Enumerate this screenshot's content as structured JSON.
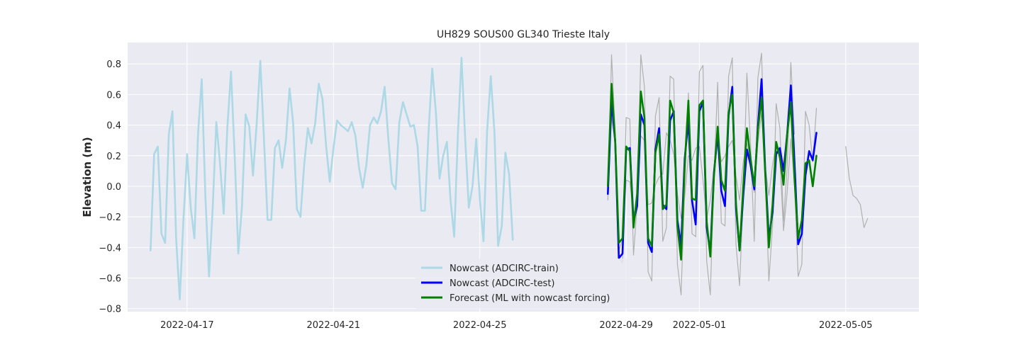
{
  "chart_data": {
    "type": "line",
    "title": "UH829 SOUS00 GL340 Trieste Italy",
    "xlabel": "",
    "ylabel": "Elevation (m)",
    "x_axis": "date",
    "xlim": [
      "2022-04-15T09:00",
      "2022-05-07T00:00"
    ],
    "ylim": [
      -0.82,
      0.94
    ],
    "x_ticks": [
      "2022-04-17",
      "2022-04-21",
      "2022-04-25",
      "2022-04-29",
      "2022-05-01",
      "2022-05-05"
    ],
    "y_ticks": [
      -0.8,
      -0.6,
      -0.4,
      -0.2,
      0.0,
      0.2,
      0.4,
      0.6,
      0.8
    ],
    "y_tick_labels": [
      "−0.8",
      "−0.6",
      "−0.4",
      "−0.2",
      "0.0",
      "0.2",
      "0.4",
      "0.6",
      "0.8"
    ],
    "grid": true,
    "background": "#EAEAF2",
    "legend_position": "lower center",
    "series": [
      {
        "name": "Nowcast (ADCIRC-train)",
        "color": "#ADD8E6",
        "x_start": "2022-04-16T00:00",
        "x_step_hours": 2.4,
        "values": [
          -0.42,
          0.21,
          0.26,
          -0.31,
          -0.37,
          0.34,
          0.49,
          -0.34,
          -0.74,
          -0.22,
          0.21,
          -0.14,
          -0.34,
          0.34,
          0.7,
          -0.07,
          -0.59,
          -0.14,
          0.42,
          0.15,
          -0.18,
          0.38,
          0.75,
          0.2,
          -0.44,
          -0.13,
          0.47,
          0.39,
          0.07,
          0.4,
          0.82,
          0.32,
          -0.22,
          -0.22,
          0.25,
          0.3,
          0.12,
          0.3,
          0.64,
          0.41,
          -0.15,
          -0.2,
          0.14,
          0.38,
          0.28,
          0.41,
          0.67,
          0.57,
          0.26,
          0.03,
          0.25,
          0.43,
          0.4,
          0.38,
          0.36,
          0.42,
          0.33,
          0.12,
          -0.01,
          0.14,
          0.4,
          0.45,
          0.41,
          0.49,
          0.65,
          0.31,
          0.02,
          -0.02,
          0.42,
          0.55,
          0.47,
          0.39,
          0.4,
          0.26,
          -0.16,
          -0.16,
          0.36,
          0.77,
          0.48,
          0.05,
          0.2,
          0.29,
          -0.09,
          -0.33,
          0.34,
          0.84,
          0.31,
          -0.14,
          0.0,
          0.31,
          -0.08,
          -0.36,
          0.36,
          0.72,
          0.35,
          -0.39,
          -0.26,
          0.22,
          0.08,
          -0.35
        ]
      },
      {
        "name": "",
        "color": "#B0B0B0",
        "x_start": "2022-04-28T12:00",
        "x_step_hours": 2.4,
        "values": [
          -0.09,
          0.86,
          0.35,
          -0.47,
          -0.5,
          0.45,
          0.44,
          -0.45,
          -0.12,
          0.86,
          0.65,
          -0.56,
          -0.62,
          0.46,
          0.58,
          -0.36,
          -0.27,
          0.72,
          0.7,
          -0.51,
          -0.71,
          -0.01,
          0.61,
          -0.31,
          -0.33,
          0.75,
          0.79,
          -0.49,
          -0.71,
          0.06,
          0.68,
          -0.24,
          -0.26,
          0.72,
          0.84,
          -0.38,
          -0.65,
          -0.06,
          0.74,
          0.27,
          -0.36,
          0.71,
          0.87,
          0.06,
          -0.62,
          -0.26,
          0.54,
          0.38,
          -0.23,
          0.13,
          0.81,
          0.34
        ]
      },
      {
        "name": "",
        "color": "#B0B0B0",
        "x_start": "2022-04-28T12:00",
        "x_step_hours": 2.4,
        "values": [
          0.02,
          0.45,
          0.28,
          -0.42,
          -0.35,
          0.04,
          0.03,
          -0.18,
          -0.12,
          0.33,
          0.3,
          -0.12,
          -0.11,
          0.01,
          0.06,
          0.08,
          0.35,
          0.3,
          0.21,
          -0.05,
          -0.21,
          -0.07,
          0.2,
          0.17,
          0.25,
          0.26,
          0.04,
          -0.21,
          -0.09,
          0.12,
          0.32,
          0.16,
          0.2,
          0.26,
          0.3,
          0.07,
          -0.09,
          0.16,
          0.28,
          0.17,
          -0.04,
          0.28,
          0.48,
          0.13,
          -0.06,
          0.14,
          0.28,
          0.17,
          -0.29,
          -0.04,
          0.31,
          0.02,
          -0.59,
          -0.51,
          0.49,
          0.4,
          0.16,
          0.51
        ]
      },
      {
        "name": "",
        "color": "#B0B0B0",
        "x_start": "2022-05-05T00:00",
        "x_step_hours": 2.4,
        "values": [
          0.26,
          0.05,
          -0.06,
          -0.08,
          -0.12,
          -0.27,
          -0.21
        ]
      },
      {
        "name": "Nowcast (ADCIRC-test)",
        "color": "#0000FF",
        "x_start": "2022-04-28T12:00",
        "x_step_hours": 2.4,
        "values": [
          -0.05,
          0.56,
          0.29,
          -0.47,
          -0.44,
          0.24,
          0.25,
          -0.23,
          -0.13,
          0.47,
          0.4,
          -0.37,
          -0.43,
          0.24,
          0.38,
          -0.12,
          -0.15,
          0.43,
          0.49,
          -0.22,
          -0.39,
          0.18,
          0.43,
          -0.09,
          -0.25,
          0.49,
          0.55,
          -0.27,
          -0.43,
          0.09,
          0.34,
          -0.03,
          -0.13,
          0.46,
          0.65,
          -0.14,
          -0.42,
          -0.06,
          0.24,
          0.14,
          -0.02,
          0.39,
          0.7,
          0.1,
          -0.34,
          -0.17,
          0.21,
          0.25,
          0.1,
          0.34,
          0.66,
          0.16,
          -0.38,
          -0.31,
          0.07,
          0.23,
          0.17,
          0.35
        ]
      },
      {
        "name": "Forecast (ML with nowcast forcing)",
        "color": "#008000",
        "x_start": "2022-04-28T12:00",
        "x_step_hours": 2.4,
        "values": [
          0.0,
          0.67,
          0.29,
          -0.37,
          -0.34,
          0.26,
          0.23,
          -0.27,
          -0.05,
          0.62,
          0.45,
          -0.34,
          -0.39,
          0.22,
          0.34,
          -0.15,
          -0.12,
          0.56,
          0.48,
          -0.26,
          -0.48,
          0.14,
          0.56,
          -0.08,
          -0.09,
          0.53,
          0.56,
          -0.23,
          -0.46,
          0.07,
          0.39,
          0.04,
          -0.03,
          0.48,
          0.6,
          -0.11,
          -0.42,
          0.0,
          0.38,
          0.18,
          0.0,
          0.37,
          0.58,
          0.08,
          -0.4,
          -0.12,
          0.29,
          0.19,
          0.01,
          0.34,
          0.55,
          0.05,
          -0.34,
          -0.22,
          0.15,
          0.17,
          0.0,
          0.2
        ]
      }
    ]
  }
}
